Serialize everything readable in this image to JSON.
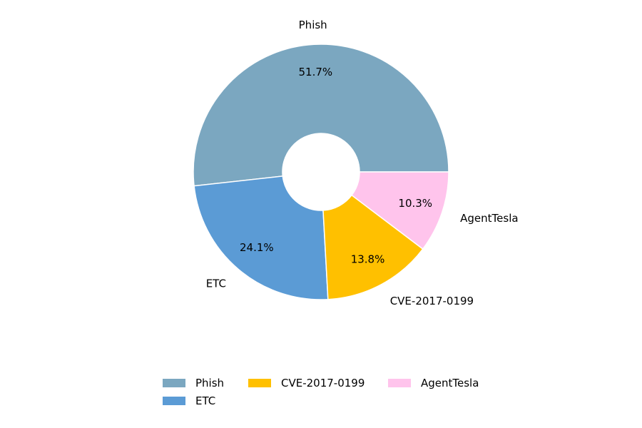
{
  "chart_data": {
    "type": "pie",
    "donut": true,
    "categories": [
      "Phish",
      "ETC",
      "CVE-2017-0199",
      "AgentTesla"
    ],
    "values": [
      51.7,
      24.1,
      13.8,
      10.3
    ],
    "value_labels": [
      "51.7%",
      "24.1%",
      "13.8%",
      "10.3%"
    ],
    "colors": [
      "#7ba7c0",
      "#5b9bd5",
      "#ffc000",
      "#ffc4ec"
    ],
    "start_angle_deg": 0,
    "direction": "counterclockwise",
    "legend_position": "bottom",
    "legend_columns": 3
  }
}
